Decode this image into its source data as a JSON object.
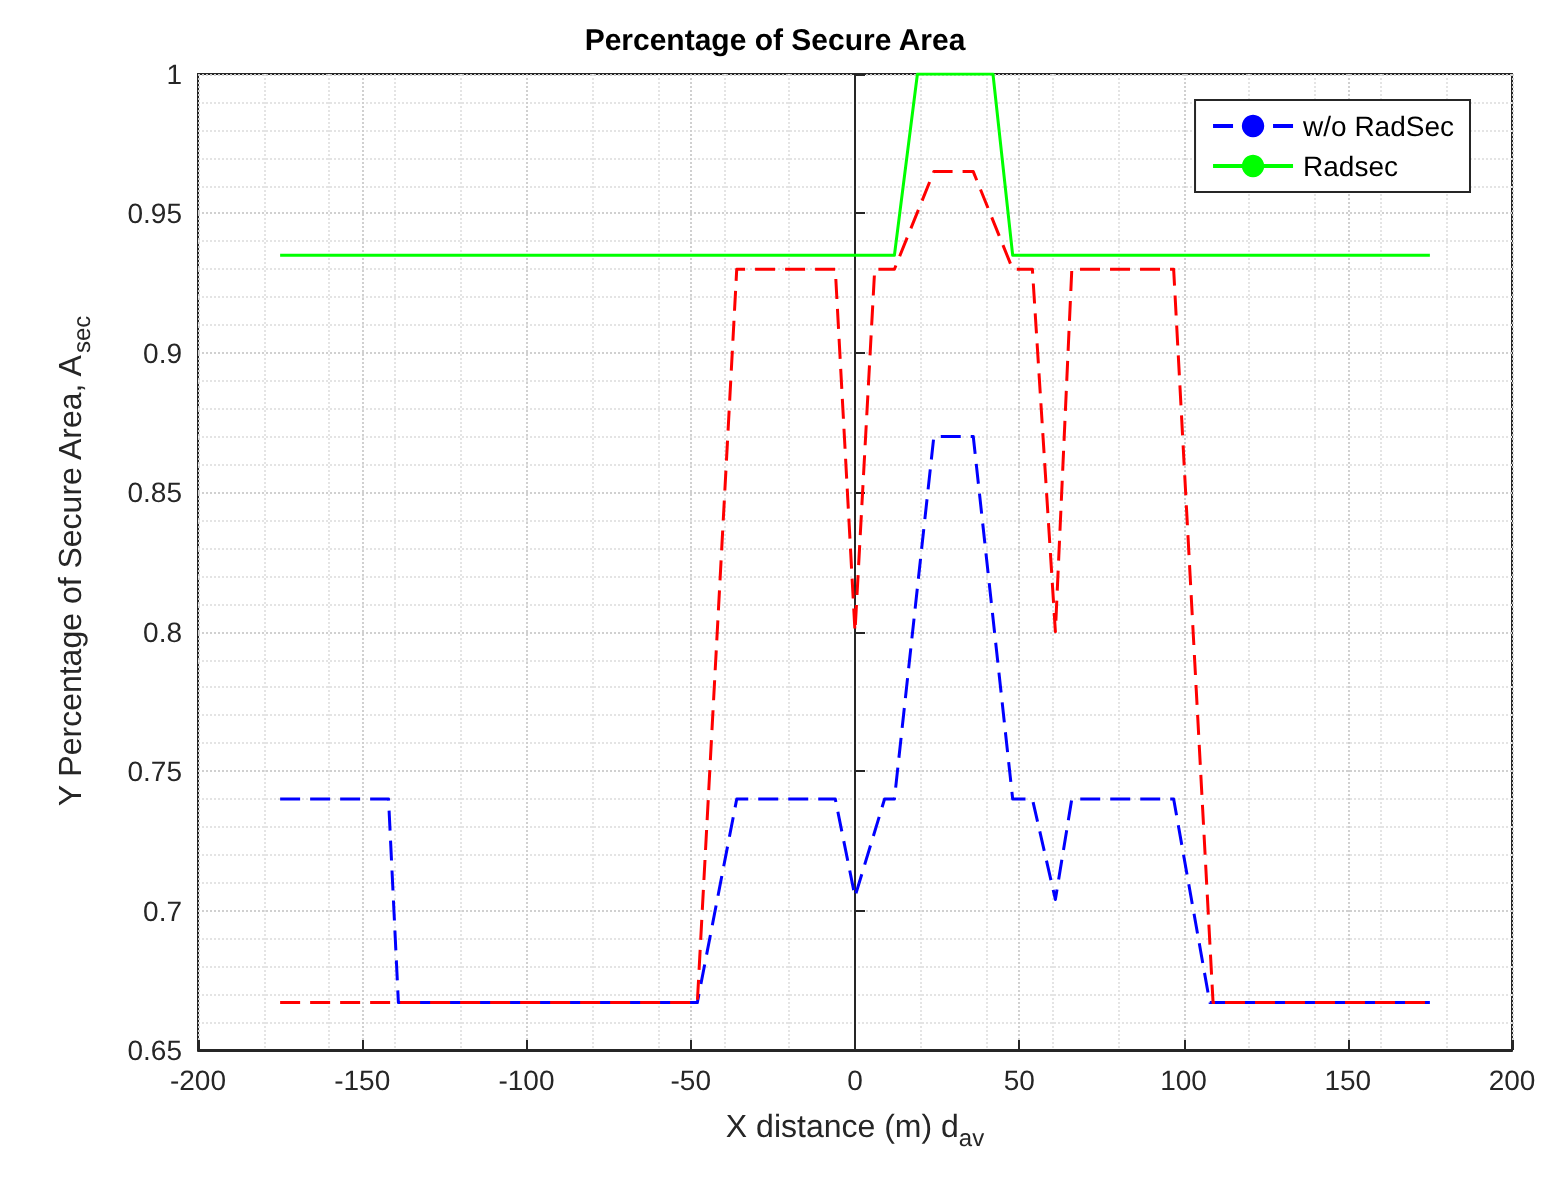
{
  "chart_data": {
    "type": "line",
    "title": "Percentage of Secure Area",
    "xlabel": "X distance (m) d$_{av}$",
    "ylabel": "Y Percentage of Secure Area, A$_{sec}$",
    "xlim": [
      -200,
      200
    ],
    "xticks": [
      -200,
      -150,
      -100,
      -50,
      0,
      50,
      100,
      150,
      200
    ],
    "ylim": [
      0.65,
      1
    ],
    "yticks": [
      0.65,
      0.7,
      0.75,
      0.8,
      0.85,
      0.9,
      0.95,
      1
    ],
    "grid": true,
    "legend": "top right",
    "marker": "none",
    "series": [
      {
        "name": "w/o RadSec",
        "color": "#0000ff",
        "line_style": "dashed",
        "x": [
          -175,
          -142,
          -139,
          -48,
          -36,
          -6,
          0,
          9,
          12,
          24,
          36,
          48,
          54,
          61,
          66,
          97,
          108,
          175
        ],
        "values": [
          0.74,
          0.74,
          0.667,
          0.667,
          0.74,
          0.74,
          0.705,
          0.74,
          0.74,
          0.87,
          0.87,
          0.74,
          0.74,
          0.704,
          0.74,
          0.74,
          0.667,
          0.667
        ]
      },
      {
        "name": "Radsec",
        "color": "#00ff00",
        "line_style": "solid",
        "x": [
          -175,
          12,
          19,
          42,
          48,
          175
        ],
        "values": [
          0.935,
          0.935,
          1,
          1,
          0.935,
          0.935
        ]
      },
      {
        "color": "#ff0000",
        "line_style": "dashed",
        "x": [
          -175,
          -48,
          -36,
          -6,
          0,
          6,
          12,
          24,
          36,
          48,
          54,
          61,
          66,
          97,
          109,
          175
        ],
        "values": [
          0.667,
          0.667,
          0.93,
          0.93,
          0.8,
          0.93,
          0.93,
          0.965,
          0.965,
          0.93,
          0.93,
          0.8,
          0.93,
          0.93,
          0.667,
          0.667
        ]
      }
    ]
  }
}
